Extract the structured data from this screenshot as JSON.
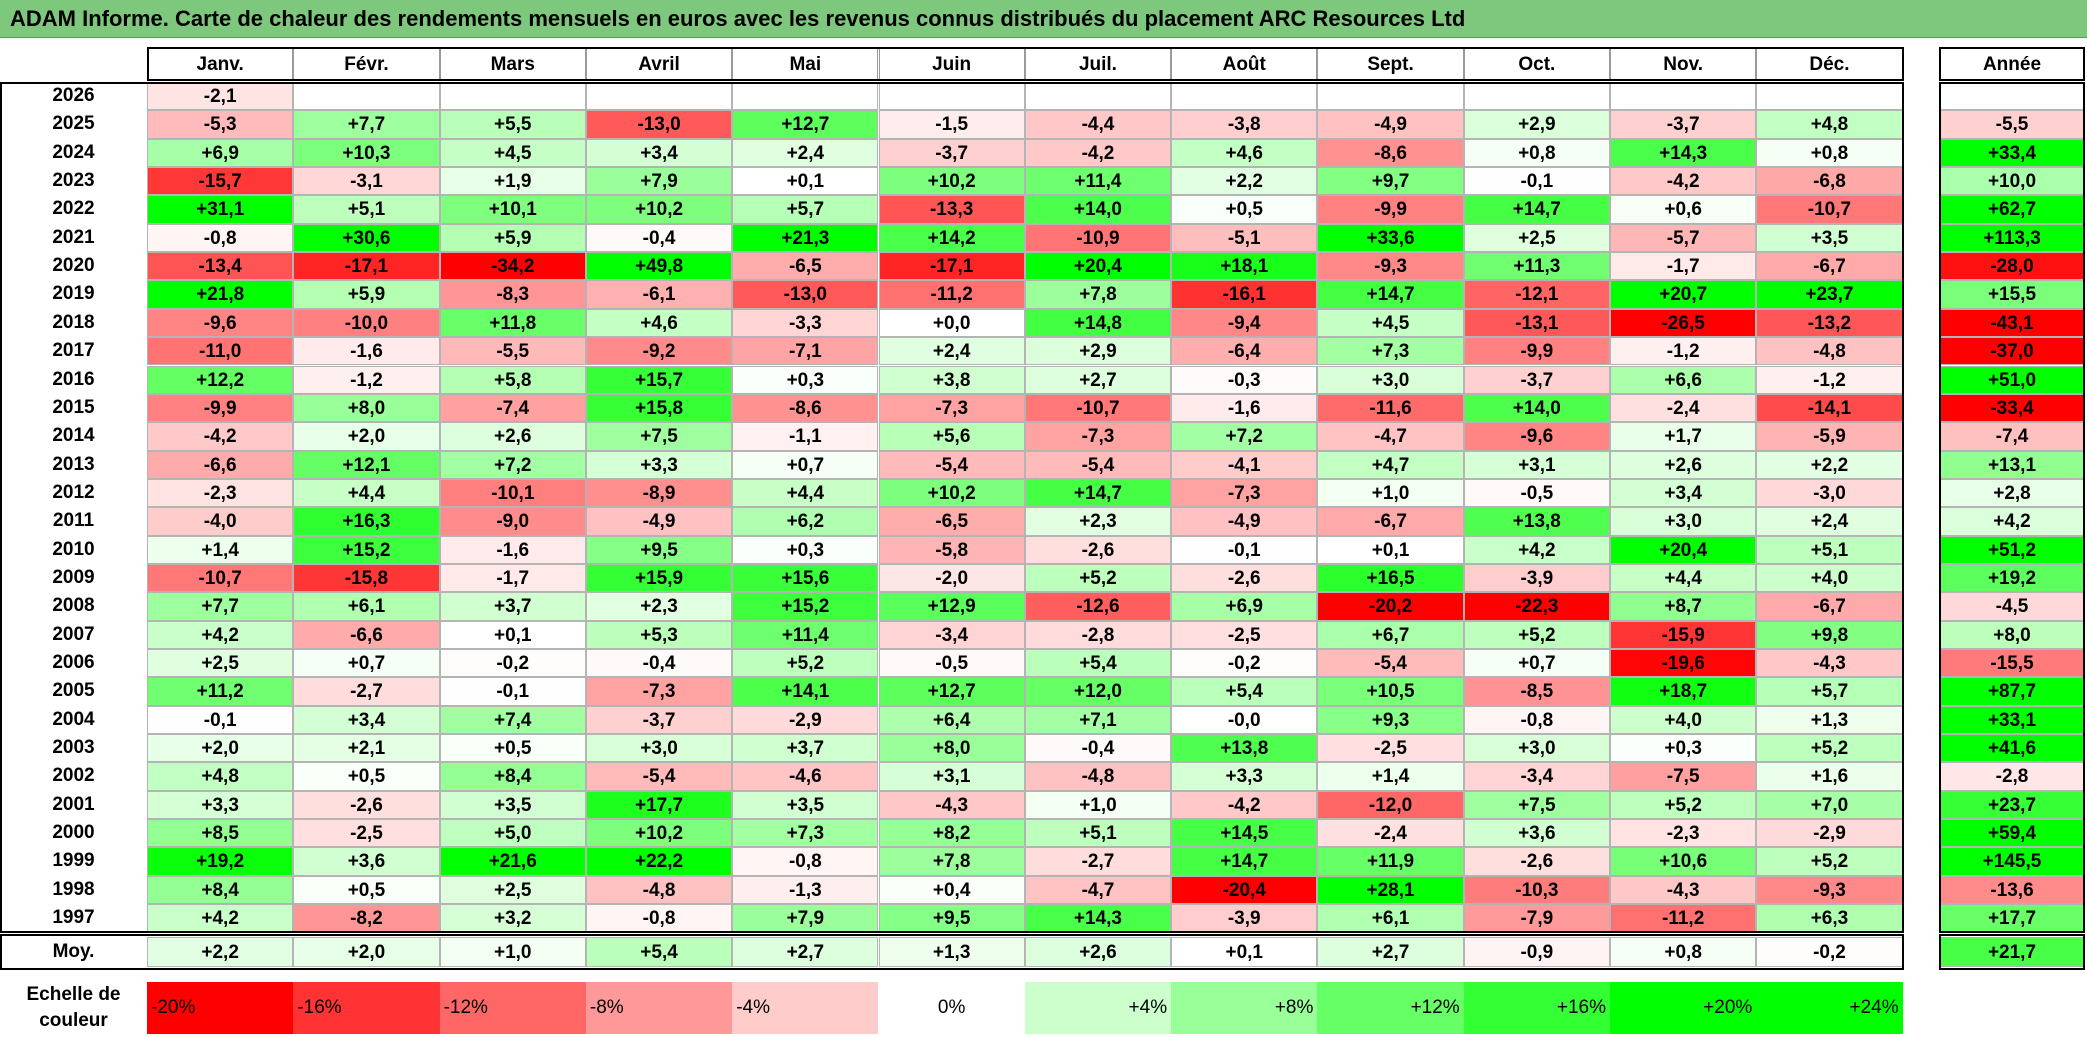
{
  "title": "ADAM Informe. Carte de chaleur des rendements mensuels en euros avec les revenus connus distribués du placement ARC Resources Ltd",
  "chart_data": {
    "type": "heatmap",
    "title": "ADAM Informe. Carte de chaleur des rendements mensuels en euros avec les revenus connus distribués du placement ARC Resources Ltd",
    "months": [
      "Janv.",
      "Févr.",
      "Mars",
      "Avril",
      "Mai",
      "Juin",
      "Juil.",
      "Août",
      "Sept.",
      "Oct.",
      "Nov.",
      "Déc."
    ],
    "annual_header": "Année",
    "rows": [
      {
        "year": "2026",
        "values": [
          "-2,1",
          "",
          "",
          "",
          "",
          "",
          "",
          "",
          "",
          "",
          "",
          ""
        ],
        "annual": ""
      },
      {
        "year": "2025",
        "values": [
          "-5,3",
          "+7,7",
          "+5,5",
          "-13,0",
          "+12,7",
          "-1,5",
          "-4,4",
          "-3,8",
          "-4,9",
          "+2,9",
          "-3,7",
          "+4,8"
        ],
        "annual": "-5,5"
      },
      {
        "year": "2024",
        "values": [
          "+6,9",
          "+10,3",
          "+4,5",
          "+3,4",
          "+2,4",
          "-3,7",
          "-4,2",
          "+4,6",
          "-8,6",
          "+0,8",
          "+14,3",
          "+0,8"
        ],
        "annual": "+33,4"
      },
      {
        "year": "2023",
        "values": [
          "-15,7",
          "-3,1",
          "+1,9",
          "+7,9",
          "+0,1",
          "+10,2",
          "+11,4",
          "+2,2",
          "+9,7",
          "-0,1",
          "-4,2",
          "-6,8"
        ],
        "annual": "+10,0"
      },
      {
        "year": "2022",
        "values": [
          "+31,1",
          "+5,1",
          "+10,1",
          "+10,2",
          "+5,7",
          "-13,3",
          "+14,0",
          "+0,5",
          "-9,9",
          "+14,7",
          "+0,6",
          "-10,7"
        ],
        "annual": "+62,7"
      },
      {
        "year": "2021",
        "values": [
          "-0,8",
          "+30,6",
          "+5,9",
          "-0,4",
          "+21,3",
          "+14,2",
          "-10,9",
          "-5,1",
          "+33,6",
          "+2,5",
          "-5,7",
          "+3,5"
        ],
        "annual": "+113,3"
      },
      {
        "year": "2020",
        "values": [
          "-13,4",
          "-17,1",
          "-34,2",
          "+49,8",
          "-6,5",
          "-17,1",
          "+20,4",
          "+18,1",
          "-9,3",
          "+11,3",
          "-1,7",
          "-6,7"
        ],
        "annual": "-28,0"
      },
      {
        "year": "2019",
        "values": [
          "+21,8",
          "+5,9",
          "-8,3",
          "-6,1",
          "-13,0",
          "-11,2",
          "+7,8",
          "-16,1",
          "+14,7",
          "-12,1",
          "+20,7",
          "+23,7"
        ],
        "annual": "+15,5"
      },
      {
        "year": "2018",
        "values": [
          "-9,6",
          "-10,0",
          "+11,8",
          "+4,6",
          "-3,3",
          "+0,0",
          "+14,8",
          "-9,4",
          "+4,5",
          "-13,1",
          "-26,5",
          "-13,2"
        ],
        "annual": "-43,1"
      },
      {
        "year": "2017",
        "values": [
          "-11,0",
          "-1,6",
          "-5,5",
          "-9,2",
          "-7,1",
          "+2,4",
          "+2,9",
          "-6,4",
          "+7,3",
          "-9,9",
          "-1,2",
          "-4,8"
        ],
        "annual": "-37,0"
      },
      {
        "year": "2016",
        "values": [
          "+12,2",
          "-1,2",
          "+5,8",
          "+15,7",
          "+0,3",
          "+3,8",
          "+2,7",
          "-0,3",
          "+3,0",
          "-3,7",
          "+6,6",
          "-1,2"
        ],
        "annual": "+51,0"
      },
      {
        "year": "2015",
        "values": [
          "-9,9",
          "+8,0",
          "-7,4",
          "+15,8",
          "-8,6",
          "-7,3",
          "-10,7",
          "-1,6",
          "-11,6",
          "+14,0",
          "-2,4",
          "-14,1"
        ],
        "annual": "-33,4"
      },
      {
        "year": "2014",
        "values": [
          "-4,2",
          "+2,0",
          "+2,6",
          "+7,5",
          "-1,1",
          "+5,6",
          "-7,3",
          "+7,2",
          "-4,7",
          "-9,6",
          "+1,7",
          "-5,9"
        ],
        "annual": "-7,4"
      },
      {
        "year": "2013",
        "values": [
          "-6,6",
          "+12,1",
          "+7,2",
          "+3,3",
          "+0,7",
          "-5,4",
          "-5,4",
          "-4,1",
          "+4,7",
          "+3,1",
          "+2,6",
          "+2,2"
        ],
        "annual": "+13,1"
      },
      {
        "year": "2012",
        "values": [
          "-2,3",
          "+4,4",
          "-10,1",
          "-8,9",
          "+4,4",
          "+10,2",
          "+14,7",
          "-7,3",
          "+1,0",
          "-0,5",
          "+3,4",
          "-3,0"
        ],
        "annual": "+2,8"
      },
      {
        "year": "2011",
        "values": [
          "-4,0",
          "+16,3",
          "-9,0",
          "-4,9",
          "+6,2",
          "-6,5",
          "+2,3",
          "-4,9",
          "-6,7",
          "+13,8",
          "+3,0",
          "+2,4"
        ],
        "annual": "+4,2"
      },
      {
        "year": "2010",
        "values": [
          "+1,4",
          "+15,2",
          "-1,6",
          "+9,5",
          "+0,3",
          "-5,8",
          "-2,6",
          "-0,1",
          "+0,1",
          "+4,2",
          "+20,4",
          "+5,1"
        ],
        "annual": "+51,2"
      },
      {
        "year": "2009",
        "values": [
          "-10,7",
          "-15,8",
          "-1,7",
          "+15,9",
          "+15,6",
          "-2,0",
          "+5,2",
          "-2,6",
          "+16,5",
          "-3,9",
          "+4,4",
          "+4,0"
        ],
        "annual": "+19,2"
      },
      {
        "year": "2008",
        "values": [
          "+7,7",
          "+6,1",
          "+3,7",
          "+2,3",
          "+15,2",
          "+12,9",
          "-12,6",
          "+6,9",
          "-20,2",
          "-22,3",
          "+8,7",
          "-6,7"
        ],
        "annual": "-4,5"
      },
      {
        "year": "2007",
        "values": [
          "+4,2",
          "-6,6",
          "+0,1",
          "+5,3",
          "+11,4",
          "-3,4",
          "-2,8",
          "-2,5",
          "+6,7",
          "+5,2",
          "-15,9",
          "+9,8"
        ],
        "annual": "+8,0"
      },
      {
        "year": "2006",
        "values": [
          "+2,5",
          "+0,7",
          "-0,2",
          "-0,4",
          "+5,2",
          "-0,5",
          "+5,4",
          "-0,2",
          "-5,4",
          "+0,7",
          "-19,6",
          "-4,3"
        ],
        "annual": "-15,5"
      },
      {
        "year": "2005",
        "values": [
          "+11,2",
          "-2,7",
          "-0,1",
          "-7,3",
          "+14,1",
          "+12,7",
          "+12,0",
          "+5,4",
          "+10,5",
          "-8,5",
          "+18,7",
          "+5,7"
        ],
        "annual": "+87,7"
      },
      {
        "year": "2004",
        "values": [
          "-0,1",
          "+3,4",
          "+7,4",
          "-3,7",
          "-2,9",
          "+6,4",
          "+7,1",
          "-0,0",
          "+9,3",
          "-0,8",
          "+4,0",
          "+1,3"
        ],
        "annual": "+33,1"
      },
      {
        "year": "2003",
        "values": [
          "+2,0",
          "+2,1",
          "+0,5",
          "+3,0",
          "+3,7",
          "+8,0",
          "-0,4",
          "+13,8",
          "-2,5",
          "+3,0",
          "+0,3",
          "+5,2"
        ],
        "annual": "+41,6"
      },
      {
        "year": "2002",
        "values": [
          "+4,8",
          "+0,5",
          "+8,4",
          "-5,4",
          "-4,6",
          "+3,1",
          "-4,8",
          "+3,3",
          "+1,4",
          "-3,4",
          "-7,5",
          "+1,6"
        ],
        "annual": "-2,8"
      },
      {
        "year": "2001",
        "values": [
          "+3,3",
          "-2,6",
          "+3,5",
          "+17,7",
          "+3,5",
          "-4,3",
          "+1,0",
          "-4,2",
          "-12,0",
          "+7,5",
          "+5,2",
          "+7,0"
        ],
        "annual": "+23,7"
      },
      {
        "year": "2000",
        "values": [
          "+8,5",
          "-2,5",
          "+5,0",
          "+10,2",
          "+7,3",
          "+8,2",
          "+5,1",
          "+14,5",
          "-2,4",
          "+3,6",
          "-2,3",
          "-2,9"
        ],
        "annual": "+59,4"
      },
      {
        "year": "1999",
        "values": [
          "+19,2",
          "+3,6",
          "+21,6",
          "+22,2",
          "-0,8",
          "+7,8",
          "-2,7",
          "+14,7",
          "+11,9",
          "-2,6",
          "+10,6",
          "+5,2"
        ],
        "annual": "+145,5"
      },
      {
        "year": "1998",
        "values": [
          "+8,4",
          "+0,5",
          "+2,5",
          "-4,8",
          "-1,3",
          "+0,4",
          "-4,7",
          "-20,4",
          "+28,1",
          "-10,3",
          "-4,3",
          "-9,3"
        ],
        "annual": "-13,6"
      },
      {
        "year": "1997",
        "values": [
          "+4,2",
          "-8,2",
          "+3,2",
          "-0,8",
          "+7,9",
          "+9,5",
          "+14,3",
          "-3,9",
          "+6,1",
          "-7,9",
          "-11,2",
          "+6,3"
        ],
        "annual": "+17,7"
      }
    ],
    "average": {
      "label": "Moy.",
      "values": [
        "+2,2",
        "+2,0",
        "+1,0",
        "+5,4",
        "+2,7",
        "+1,3",
        "+2,6",
        "+0,1",
        "+2,7",
        "-0,9",
        "+0,8",
        "-0,2"
      ],
      "annual": "+21,7"
    },
    "scale": {
      "label": "Echelle de couleur",
      "steps": [
        "-20%",
        "-16%",
        "-12%",
        "-8%",
        "-4%",
        "0%",
        "+4%",
        "+8%",
        "+12%",
        "+16%",
        "+20%",
        "+24%"
      ],
      "step_values": [
        -20,
        -16,
        -12,
        -8,
        -4,
        0,
        4,
        8,
        12,
        16,
        20,
        24
      ]
    },
    "colors": {
      "negative_max": "#ff0000",
      "neutral": "#ffffff",
      "positive_max": "#00ff00",
      "title_bar": "#7dc87d"
    }
  }
}
